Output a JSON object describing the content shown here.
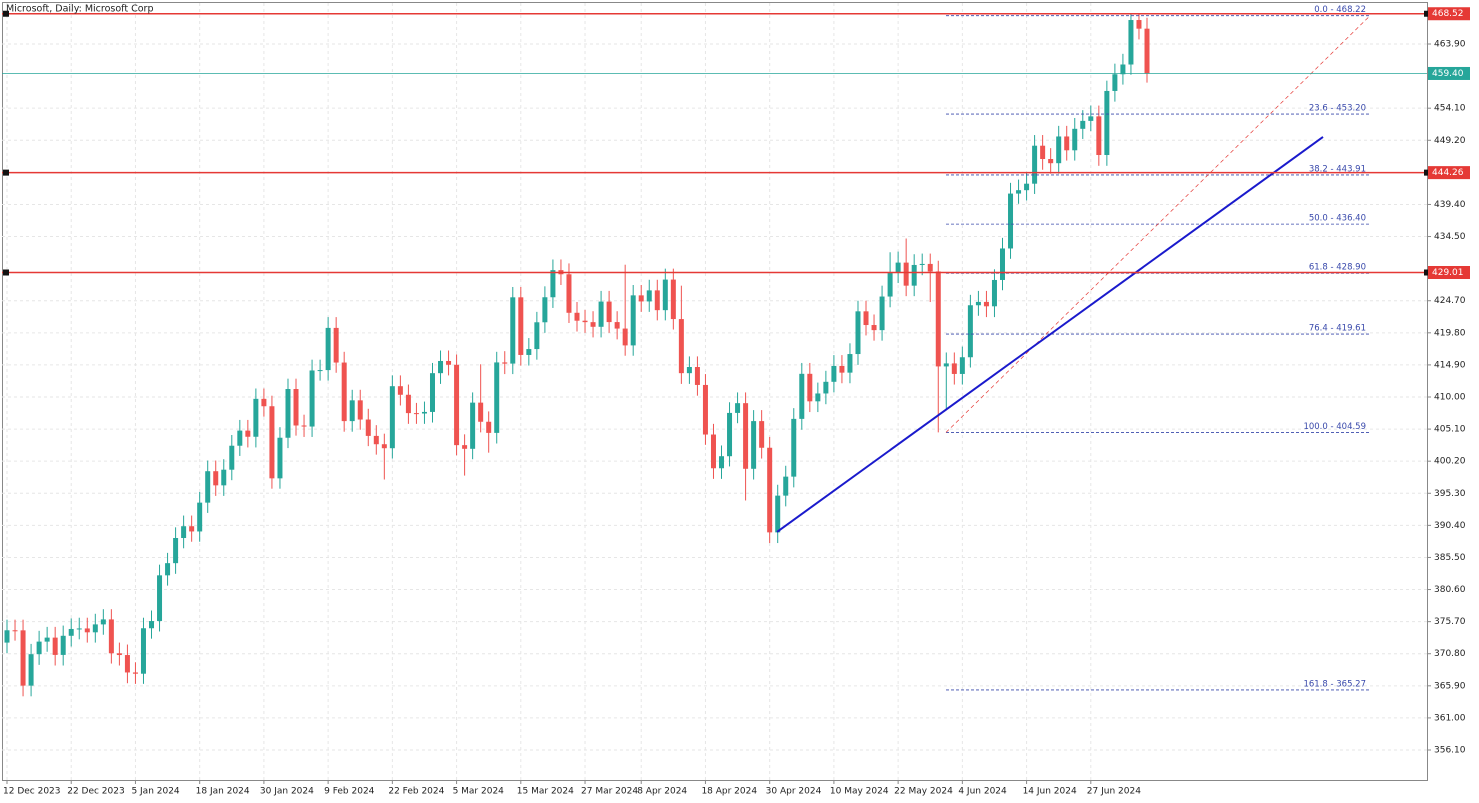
{
  "chart_data": {
    "type": "candlestick",
    "title": "Microsoft, Daily:  Microsoft Corp",
    "categories": [
      "12 Dec 2023",
      null,
      null,
      null,
      null,
      null,
      null,
      null,
      "22 Dec 2023",
      null,
      null,
      null,
      null,
      null,
      null,
      null,
      "5 Jan 2024",
      null,
      null,
      null,
      null,
      null,
      null,
      null,
      "18 Jan 2024",
      null,
      null,
      null,
      null,
      null,
      null,
      null,
      "30 Jan 2024",
      null,
      null,
      null,
      null,
      null,
      null,
      null,
      "9 Feb 2024",
      null,
      null,
      null,
      null,
      null,
      null,
      null,
      "22 Feb 2024",
      null,
      null,
      null,
      null,
      null,
      null,
      null,
      "5 Mar 2024",
      null,
      null,
      null,
      null,
      null,
      null,
      null,
      "15 Mar 2024",
      null,
      null,
      null,
      null,
      null,
      null,
      null,
      "27 Mar 2024",
      null,
      null,
      null,
      null,
      null,
      null,
      "8 Apr 2024",
      null,
      null,
      null,
      null,
      null,
      null,
      null,
      "18 Apr 2024",
      null,
      null,
      null,
      null,
      null,
      null,
      null,
      "30 Apr 2024",
      null,
      null,
      null,
      null,
      null,
      null,
      null,
      "10 May 2024",
      null,
      null,
      null,
      null,
      null,
      null,
      null,
      "22 May 2024",
      null,
      null,
      null,
      null,
      null,
      null,
      null,
      "4 Jun 2024",
      null,
      null,
      null,
      null,
      null,
      null,
      null,
      "14 Jun 2024",
      null,
      null,
      null,
      null,
      null,
      null,
      null,
      "27 Jun 2024",
      null,
      null,
      null,
      null,
      null,
      null,
      null
    ],
    "open": [
      372.5,
      374.38,
      374.37,
      365.93,
      370.73,
      372.65,
      373.26,
      370.62,
      373.54,
      374.58,
      374.66,
      374.07,
      375.28,
      376.04,
      370.87,
      370.6,
      367.94,
      367.75,
      374.69,
      375.79,
      382.77,
      384.63,
      388.47,
      390.27,
      389.47,
      393.87,
      398.67,
      396.51,
      398.9,
      402.56,
      404.87,
      403.93,
      409.72,
      408.59,
      397.58,
      403.78,
      411.22,
      405.65,
      405.49,
      414.05,
      414.11,
      420.55,
      415.26,
      406.32,
      409.49,
      406.56,
      404.06,
      402.79,
      402.18,
      411.65,
      410.34,
      407.54,
      407.48,
      407.72,
      413.64,
      415.5,
      414.92,
      402.65,
      402.09,
      409.14,
      406.22,
      404.52,
      415.28,
      415.1,
      425.22,
      416.42,
      417.32,
      421.41,
      425.23,
      429.37,
      428.74,
      422.86,
      421.65,
      421.43,
      420.72,
      424.57,
      421.44,
      420.45,
      417.88,
      425.52,
      424.59,
      426.28,
      423.26,
      427.93,
      421.9,
      413.64,
      414.58,
      411.84,
      404.27,
      399.12,
      400.96,
      407.57,
      409.06,
      399.04,
      406.32,
      402.25,
      389.33,
      394.94,
      397.84,
      406.66,
      413.54,
      409.34,
      410.54,
      412.32,
      414.74,
      413.72,
      416.56,
      423.08,
      420.99,
      420.21,
      425.34,
      429.04,
      430.52,
      427,
      430.16,
      430.32,
      429.17,
      414.67,
      415.13,
      413.52,
      416.07,
      424.01,
      424.52,
      423.85,
      427.87,
      432.68,
      441.06,
      441.58,
      442.57,
      448.37,
      446.34,
      445.7,
      449.78,
      447.67,
      450.95,
      452.16,
      452.85,
      446.95,
      456.73,
      459.28,
      460.77,
      467.56,
      466.24
    ],
    "high": [
      376,
      376,
      376,
      372.3,
      374.3,
      374.9,
      374.9,
      375.1,
      376.2,
      376.3,
      376.3,
      376.9,
      377.6,
      377.6,
      372.5,
      372.2,
      369.5,
      376.3,
      377.4,
      384.4,
      386.2,
      390.1,
      391.9,
      391.9,
      395.5,
      400.3,
      400.3,
      400.5,
      404.2,
      406.5,
      406.5,
      411.3,
      411.3,
      410.2,
      405.4,
      412.8,
      412.8,
      407.3,
      415.7,
      415.7,
      422.2,
      422.2,
      416.9,
      411.1,
      411.1,
      408.2,
      405.7,
      404.4,
      413.3,
      413.3,
      411.9,
      409.1,
      409.3,
      415.2,
      417.1,
      417.1,
      416.5,
      404.3,
      410.7,
      415,
      407.8,
      416.9,
      417,
      426.8,
      426.8,
      419,
      423,
      426.9,
      431,
      431,
      430.4,
      424.5,
      423.3,
      423.1,
      426.2,
      426.2,
      423.1,
      430.2,
      427.1,
      427.1,
      427.9,
      427.9,
      429.6,
      429.6,
      427,
      416.2,
      416.2,
      413.5,
      405.9,
      402.6,
      409.2,
      410.7,
      410.7,
      408,
      408,
      403.9,
      396.6,
      399.5,
      408.3,
      415.2,
      415.2,
      412.2,
      414,
      416.4,
      416.4,
      418.2,
      424.7,
      424.7,
      422.6,
      427,
      432.1,
      432.2,
      434.2,
      431.8,
      431.9,
      431.9,
      430.8,
      416.8,
      416.8,
      417.7,
      425.6,
      426.2,
      426.2,
      429.5,
      434.3,
      442.7,
      443.2,
      444.2,
      450,
      450,
      448,
      451.4,
      451.4,
      452.6,
      453.8,
      454.5,
      454.5,
      458.3,
      460.9,
      462.4,
      468.5,
      468.5,
      467.9
    ],
    "low": [
      370.9,
      372.8,
      364.3,
      364.3,
      369.1,
      371.1,
      369,
      369,
      371.9,
      373,
      372.5,
      372.5,
      373.7,
      369.3,
      369,
      366.3,
      366.2,
      366.2,
      373.1,
      374.2,
      381.2,
      383,
      386.9,
      387.9,
      387.9,
      392.3,
      394.9,
      394.9,
      397.3,
      401,
      402.3,
      402.3,
      407,
      396,
      396,
      402.2,
      404.1,
      403.9,
      403.9,
      412.5,
      412.5,
      413.7,
      404.7,
      404.7,
      405,
      402.5,
      401.2,
      397.4,
      400.6,
      408.7,
      405.9,
      405.9,
      405.9,
      406.1,
      412,
      413.3,
      401.1,
      398,
      400.5,
      404.6,
      401.5,
      402.9,
      413.5,
      413.5,
      414.8,
      414.8,
      415.7,
      419.8,
      423.6,
      427.1,
      421.3,
      420,
      419.8,
      419.1,
      419.1,
      419.8,
      418.8,
      416.3,
      416.3,
      423,
      423,
      421.7,
      421.7,
      420.3,
      412,
      412,
      410.2,
      402.7,
      397.5,
      397.5,
      399.4,
      406,
      394.2,
      397.4,
      400.6,
      387.7,
      387.7,
      393.3,
      396.2,
      405,
      407.7,
      407.7,
      408.9,
      410.7,
      412.1,
      412.1,
      414.9,
      419.4,
      418.6,
      418.6,
      423.7,
      427.4,
      425.4,
      425.4,
      428.6,
      424.5,
      404.6,
      408,
      411.9,
      411.9,
      414.5,
      422.4,
      422.2,
      422.2,
      426.3,
      431.1,
      439.5,
      440,
      441,
      444.7,
      444.1,
      444.1,
      446.1,
      446.1,
      449.4,
      450.6,
      445.3,
      445.3,
      455.1,
      457.7,
      459.2,
      464.6,
      458
    ],
    "close": [
      374.38,
      374.37,
      365.93,
      370.73,
      372.65,
      373.26,
      370.62,
      373.54,
      374.58,
      374.66,
      374.07,
      375.28,
      376.04,
      370.87,
      370.6,
      367.94,
      367.75,
      374.69,
      375.79,
      382.77,
      384.63,
      388.47,
      390.27,
      389.47,
      393.87,
      398.67,
      396.51,
      398.9,
      402.56,
      404.87,
      403.93,
      409.72,
      408.59,
      397.58,
      403.78,
      411.22,
      405.65,
      405.49,
      414.05,
      414.11,
      420.55,
      415.26,
      406.32,
      409.49,
      406.56,
      404.06,
      402.79,
      402.18,
      411.65,
      410.34,
      407.54,
      407.48,
      407.72,
      413.64,
      415.5,
      414.92,
      402.65,
      402.09,
      409.14,
      406.22,
      404.52,
      415.28,
      415.1,
      425.22,
      416.42,
      417.32,
      421.41,
      425.23,
      429.37,
      428.74,
      422.86,
      421.65,
      421.43,
      420.72,
      424.57,
      421.44,
      420.45,
      417.88,
      425.52,
      424.59,
      426.28,
      423.26,
      427.93,
      421.9,
      413.64,
      414.58,
      411.84,
      404.27,
      399.12,
      400.96,
      407.57,
      409.06,
      399.04,
      406.32,
      402.25,
      389.33,
      394.94,
      397.84,
      406.66,
      413.54,
      409.34,
      410.54,
      412.32,
      414.74,
      413.72,
      416.56,
      423.08,
      420.99,
      420.21,
      425.34,
      429.04,
      430.52,
      427,
      430.16,
      430.32,
      429.17,
      414.67,
      415.13,
      413.52,
      416.07,
      424.01,
      424.52,
      423.85,
      427.87,
      432.68,
      441.06,
      441.58,
      442.57,
      448.37,
      446.34,
      445.7,
      449.78,
      447.67,
      450.95,
      452.16,
      452.85,
      446.95,
      456.73,
      459.28,
      460.77,
      467.56,
      466.24,
      459.4
    ],
    "up_color": "#26a69a",
    "down_color": "#ef5350",
    "ylim": [
      351.52,
      470.16
    ],
    "yticks": [
      {
        "value": 356.1,
        "label": "356.10"
      },
      {
        "value": 361,
        "label": "361.00"
      },
      {
        "value": 365.9,
        "label": "365.90"
      },
      {
        "value": 370.8,
        "label": "370.80"
      },
      {
        "value": 375.7,
        "label": "375.70"
      },
      {
        "value": 380.6,
        "label": "380.60"
      },
      {
        "value": 385.5,
        "label": "385.50"
      },
      {
        "value": 390.4,
        "label": "390.40"
      },
      {
        "value": 395.3,
        "label": "395.30"
      },
      {
        "value": 400.2,
        "label": "400.20"
      },
      {
        "value": 405.1,
        "label": "405.10"
      },
      {
        "value": 410,
        "label": "410.00"
      },
      {
        "value": 414.9,
        "label": "414.90"
      },
      {
        "value": 419.8,
        "label": "419.80"
      },
      {
        "value": 424.7,
        "label": "424.70"
      },
      {
        "value": 434.5,
        "label": "434.50"
      },
      {
        "value": 439.4,
        "label": "439.40"
      },
      {
        "value": 449.2,
        "label": "449.20"
      },
      {
        "value": 454.1,
        "label": "454.10"
      },
      {
        "value": 463.9,
        "label": "463.90"
      }
    ],
    "grid": true,
    "levels": [
      {
        "value": 468.52,
        "label": "468.52"
      },
      {
        "value": 444.26,
        "label": "444.26"
      },
      {
        "value": 429.01,
        "label": "429.01"
      }
    ],
    "level_color": "#e53935",
    "bid": {
      "value": 459.4,
      "label": "459.40",
      "color": "#26a69a"
    },
    "fibonacci": [
      {
        "value": 468.22,
        "label": "0.0 - 468.22"
      },
      {
        "value": 453.2,
        "label": "23.6 - 453.20"
      },
      {
        "value": 443.91,
        "label": "38.2 - 443.91"
      },
      {
        "value": 436.4,
        "label": "50.0 - 436.40"
      },
      {
        "value": 428.9,
        "label": "61.8 - 428.90"
      },
      {
        "value": 419.61,
        "label": "76.4 - 419.61"
      },
      {
        "value": 404.59,
        "label": "100.0 - 404.59"
      },
      {
        "value": 365.27,
        "label": "161.8 - 365.27"
      }
    ],
    "fib_color": "#3949ab",
    "trendline": {
      "from": 389.4,
      "to": 449.7,
      "color": "#1a1acc"
    }
  }
}
